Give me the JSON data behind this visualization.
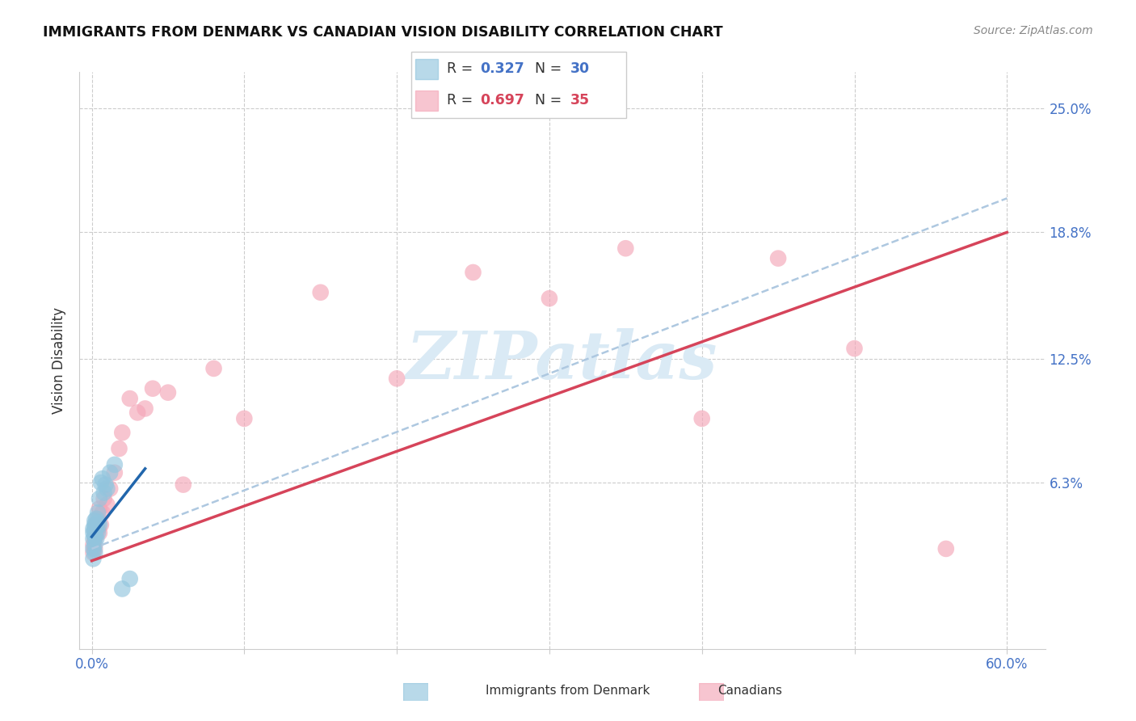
{
  "title": "IMMIGRANTS FROM DENMARK VS CANADIAN VISION DISABILITY CORRELATION CHART",
  "source": "Source: ZipAtlas.com",
  "ylabel_label": "Vision Disability",
  "ytick_labels": [
    "6.3%",
    "12.5%",
    "18.8%",
    "25.0%"
  ],
  "ytick_values": [
    0.063,
    0.125,
    0.188,
    0.25
  ],
  "xlim": [
    -0.008,
    0.625
  ],
  "ylim": [
    -0.02,
    0.268
  ],
  "legend_r1": "0.327",
  "legend_n1": "30",
  "legend_r2": "0.697",
  "legend_n2": "35",
  "legend_label1": "Immigrants from Denmark",
  "legend_label2": "Canadians",
  "color_blue": "#92c5de",
  "color_pink": "#f4a6b8",
  "line_blue": "#2166ac",
  "line_pink": "#d6445a",
  "line_dash": "#aec8e0",
  "watermark_color": "#daeaf5",
  "denmark_x": [
    0.001,
    0.001,
    0.001,
    0.001,
    0.001,
    0.002,
    0.002,
    0.002,
    0.002,
    0.002,
    0.002,
    0.002,
    0.003,
    0.003,
    0.003,
    0.003,
    0.004,
    0.004,
    0.004,
    0.005,
    0.005,
    0.006,
    0.007,
    0.008,
    0.009,
    0.01,
    0.012,
    0.015,
    0.02,
    0.025
  ],
  "denmark_y": [
    0.03,
    0.035,
    0.04,
    0.025,
    0.038,
    0.032,
    0.036,
    0.038,
    0.042,
    0.044,
    0.028,
    0.04,
    0.035,
    0.04,
    0.042,
    0.045,
    0.038,
    0.043,
    0.048,
    0.042,
    0.055,
    0.063,
    0.065,
    0.058,
    0.062,
    0.06,
    0.068,
    0.072,
    0.01,
    0.015
  ],
  "canadian_x": [
    0.001,
    0.001,
    0.002,
    0.002,
    0.003,
    0.003,
    0.004,
    0.004,
    0.005,
    0.005,
    0.006,
    0.007,
    0.008,
    0.01,
    0.012,
    0.015,
    0.018,
    0.02,
    0.025,
    0.03,
    0.035,
    0.04,
    0.05,
    0.06,
    0.08,
    0.1,
    0.15,
    0.2,
    0.25,
    0.3,
    0.35,
    0.4,
    0.45,
    0.5,
    0.56
  ],
  "canadian_y": [
    0.028,
    0.032,
    0.03,
    0.035,
    0.038,
    0.042,
    0.04,
    0.045,
    0.038,
    0.05,
    0.042,
    0.048,
    0.055,
    0.052,
    0.06,
    0.068,
    0.08,
    0.088,
    0.105,
    0.098,
    0.1,
    0.11,
    0.108,
    0.062,
    0.12,
    0.095,
    0.158,
    0.115,
    0.168,
    0.155,
    0.18,
    0.095,
    0.175,
    0.13,
    0.03
  ],
  "pink_line_x0": 0.0,
  "pink_line_y0": 0.024,
  "pink_line_x1": 0.6,
  "pink_line_y1": 0.188,
  "blue_line_x0": 0.0,
  "blue_line_y0": 0.036,
  "blue_line_x1": 0.035,
  "blue_line_y1": 0.07,
  "dash_line_x0": 0.0,
  "dash_line_y0": 0.03,
  "dash_line_x1": 0.6,
  "dash_line_y1": 0.205,
  "xtick_minor": [
    0.1,
    0.2,
    0.3,
    0.4,
    0.5
  ]
}
